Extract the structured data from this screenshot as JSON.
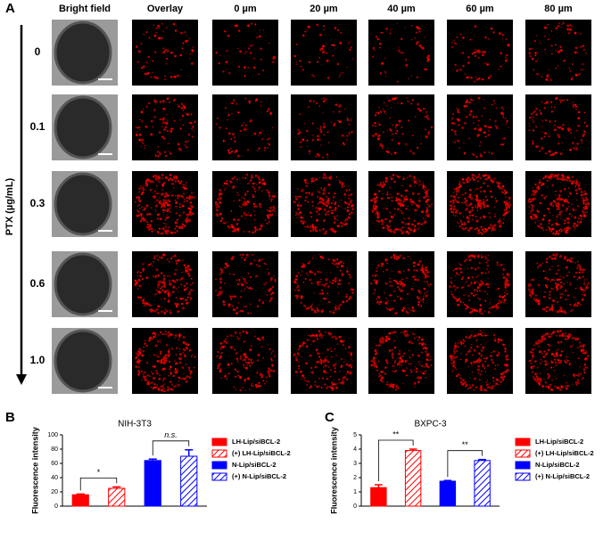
{
  "figure_a": {
    "label": "A",
    "y_label": "PTX (µg/mL)",
    "columns": [
      "Bright field",
      "Overlay",
      "0 µm",
      "20 µm",
      "40 µm",
      "60 µm",
      "80 µm"
    ],
    "rows": [
      "0",
      "0.1",
      "0.3",
      "0.6",
      "1.0"
    ]
  },
  "chart_data": [
    {
      "type": "bar",
      "panel": "B",
      "title": "NIH-3T3",
      "y_label": "Fluorescence intensity",
      "ylim": [
        0,
        100
      ],
      "yticks": [
        0,
        20,
        40,
        60,
        80,
        100
      ],
      "series": [
        {
          "name": "LH-Lip/siBCL-2",
          "color": "#ff0000",
          "hatch": false,
          "values": [
            16
          ],
          "errors": [
            1
          ]
        },
        {
          "name": "(+) LH-Lip/siBCL-2",
          "color": "#ff0000",
          "hatch": true,
          "values": [
            25
          ],
          "errors": [
            2
          ]
        },
        {
          "name": "N-Lip/siBCL-2",
          "color": "#0000ff",
          "hatch": false,
          "values": [
            64
          ],
          "errors": [
            2
          ]
        },
        {
          "name": "(+) N-Lip/siBCL-2",
          "color": "#0000ff",
          "hatch": true,
          "values": [
            70
          ],
          "errors": [
            9
          ]
        }
      ],
      "annotations": [
        "*",
        "n.s."
      ]
    },
    {
      "type": "bar",
      "panel": "C",
      "title": "BXPC-3",
      "y_label": "Fluorescence intensity",
      "ylim": [
        0,
        5
      ],
      "yticks": [
        0,
        1,
        2,
        3,
        4,
        5
      ],
      "series": [
        {
          "name": "LH-Lip/siBCL-2",
          "color": "#ff0000",
          "hatch": false,
          "values": [
            1.3
          ],
          "errors": [
            0.2
          ]
        },
        {
          "name": "(+) LH-Lip/siBCL-2",
          "color": "#ff0000",
          "hatch": true,
          "values": [
            3.9
          ],
          "errors": [
            0.1
          ]
        },
        {
          "name": "N-Lip/siBCL-2",
          "color": "#0000ff",
          "hatch": false,
          "values": [
            1.75
          ],
          "errors": [
            0.05
          ]
        },
        {
          "name": "(+) N-Lip/siBCL-2",
          "color": "#0000ff",
          "hatch": true,
          "values": [
            3.2
          ],
          "errors": [
            0.07
          ]
        }
      ],
      "annotations": [
        "**",
        "**"
      ]
    }
  ]
}
